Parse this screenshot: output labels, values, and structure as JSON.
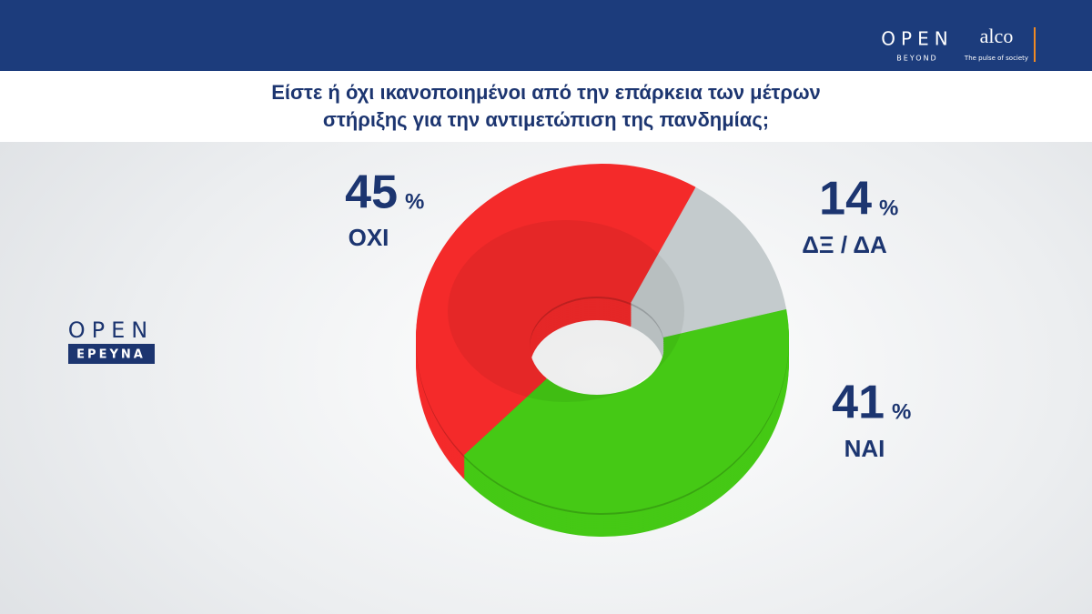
{
  "header": {
    "brand": "OPEN",
    "brand_sub": "BEYOND",
    "partner": "alco",
    "partner_sub": "The pulse of society"
  },
  "side_logo": {
    "brand": "OPEN",
    "section": "ΕΡΕΥΝΑ"
  },
  "chart_data": {
    "type": "pie",
    "title": "Είστε ή όχι ικανοποιημένοι από την επάρκεια των μέτρων στήριξης για την αντιμετώπιση της πανδημίας;",
    "categories": [
      "ΟΧΙ",
      "ΔΞ / ΔΑ",
      "ΝΑΙ"
    ],
    "values": [
      45,
      14,
      41
    ],
    "unit": "%",
    "colors": [
      "#f42a2a",
      "#c4cbcd",
      "#45c915"
    ]
  }
}
